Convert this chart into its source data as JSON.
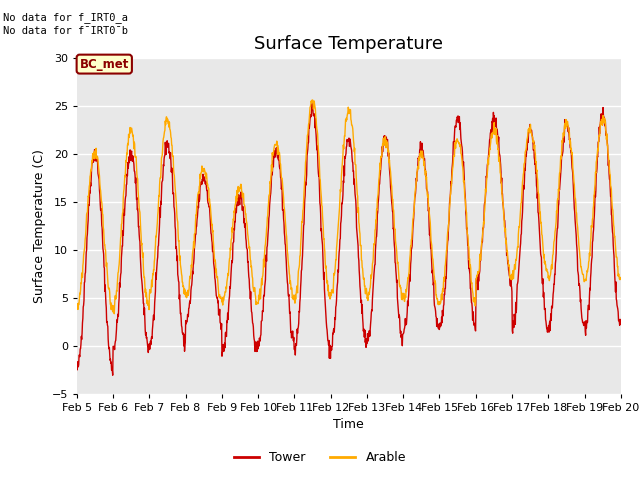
{
  "title": "Surface Temperature",
  "ylabel": "Surface Temperature (C)",
  "xlabel": "Time",
  "ylim": [
    -5,
    30
  ],
  "annotation_line1": "No data for f_IRT0_a",
  "annotation_line2": "No data for f¯IRT0¯b",
  "bc_met_label": "BC_met",
  "legend_entries": [
    "Tower",
    "Arable"
  ],
  "tower_color": "#cc0000",
  "arable_color": "#ffaa00",
  "bg_color": "#e8e8e8",
  "fig_bg": "#ffffff",
  "x_tick_labels": [
    "Feb 5",
    "Feb 6",
    "Feb 7",
    "Feb 8",
    "Feb 9",
    "Feb 10",
    "Feb 11",
    "Feb 12",
    "Feb 13",
    "Feb 14",
    "Feb 15",
    "Feb 16",
    "Feb 17",
    "Feb 18",
    "Feb 19",
    "Feb 20"
  ],
  "n_days": 15,
  "tower_daily_min": [
    -2.5,
    -0.2,
    0.1,
    2.5,
    -0.8,
    0.5,
    -0.5,
    0.0,
    0.5,
    1.5,
    1.8,
    6.5,
    1.8,
    2.0,
    2.0
  ],
  "tower_daily_max": [
    20.0,
    20.0,
    21.0,
    17.5,
    15.5,
    20.5,
    24.5,
    21.5,
    21.5,
    20.5,
    23.5,
    23.5,
    22.5,
    23.0,
    24.0
  ],
  "arable_daily_min": [
    4.0,
    4.0,
    5.5,
    5.0,
    4.5,
    5.0,
    5.0,
    5.5,
    5.0,
    4.5,
    4.5,
    7.0,
    7.5,
    7.0,
    7.0
  ],
  "arable_daily_max": [
    20.0,
    22.5,
    23.5,
    18.5,
    16.5,
    21.0,
    25.5,
    24.5,
    21.5,
    20.0,
    21.5,
    22.5,
    22.5,
    23.0,
    23.5
  ],
  "tower_linewidth": 1.0,
  "arable_linewidth": 1.0,
  "title_fontsize": 13,
  "axis_label_fontsize": 9,
  "tick_fontsize": 8,
  "legend_fontsize": 9
}
